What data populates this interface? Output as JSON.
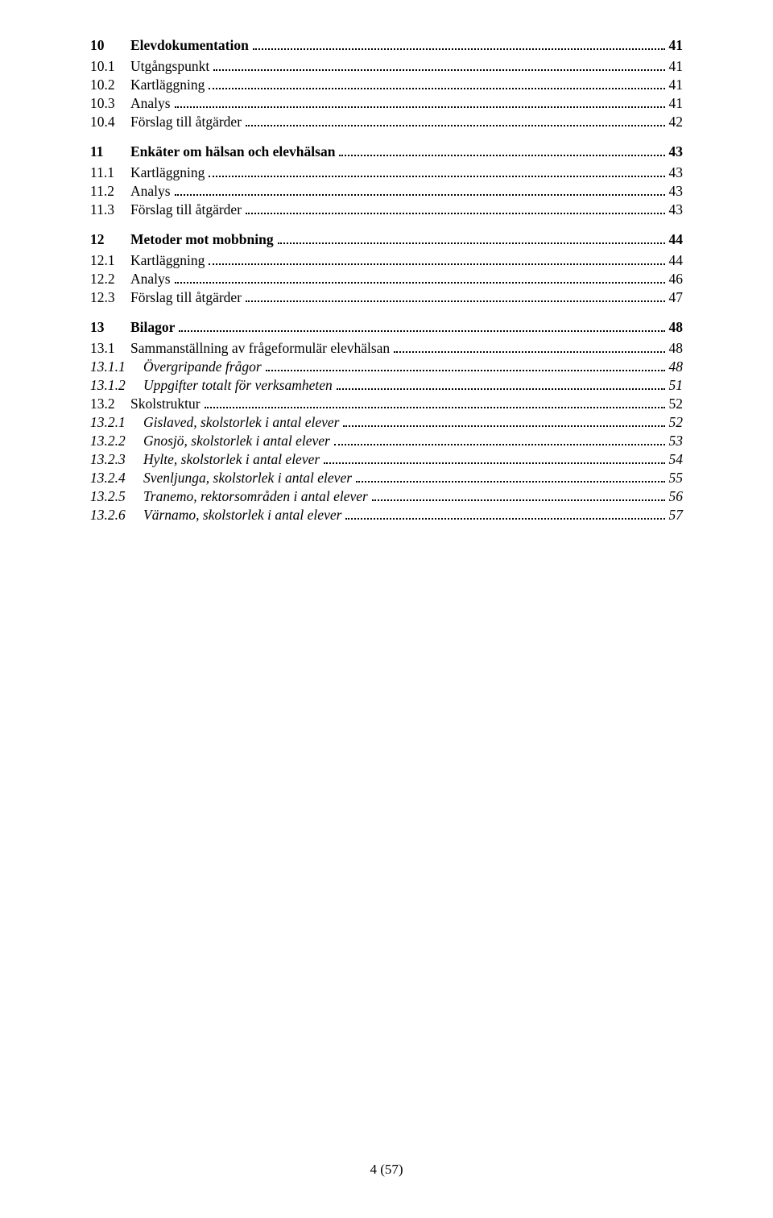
{
  "footer": "4 (57)",
  "toc": [
    {
      "level": 1,
      "num": "10",
      "label": "Elevdokumentation",
      "page": "41"
    },
    {
      "level": 2,
      "num": "10.1",
      "label": "Utgångspunkt",
      "page": "41"
    },
    {
      "level": 2,
      "num": "10.2",
      "label": "Kartläggning",
      "page": "41"
    },
    {
      "level": 2,
      "num": "10.3",
      "label": "Analys",
      "page": "41"
    },
    {
      "level": 2,
      "num": "10.4",
      "label": "Förslag till åtgärder",
      "page": "42"
    },
    {
      "level": 1,
      "num": "11",
      "label": "Enkäter om hälsan och elevhälsan",
      "page": "43"
    },
    {
      "level": 2,
      "num": "11.1",
      "label": "Kartläggning",
      "page": "43"
    },
    {
      "level": 2,
      "num": "11.2",
      "label": "Analys",
      "page": "43"
    },
    {
      "level": 2,
      "num": "11.3",
      "label": "Förslag till åtgärder",
      "page": "43"
    },
    {
      "level": 1,
      "num": "12",
      "label": "Metoder mot mobbning",
      "page": "44"
    },
    {
      "level": 2,
      "num": "12.1",
      "label": "Kartläggning",
      "page": "44"
    },
    {
      "level": 2,
      "num": "12.2",
      "label": "Analys",
      "page": "46"
    },
    {
      "level": 2,
      "num": "12.3",
      "label": "Förslag till åtgärder",
      "page": "47"
    },
    {
      "level": 1,
      "num": "13",
      "label": "Bilagor",
      "page": "48"
    },
    {
      "level": 2,
      "num": "13.1",
      "label": "Sammanställning av frågeformulär elevhälsan",
      "page": "48"
    },
    {
      "level": 3,
      "num": "13.1.1",
      "label": "Övergripande frågor",
      "page": "48"
    },
    {
      "level": 3,
      "num": "13.1.2",
      "label": "Uppgifter totalt för verksamheten",
      "page": "51"
    },
    {
      "level": 2,
      "num": "13.2",
      "label": "Skolstruktur",
      "page": "52"
    },
    {
      "level": 3,
      "num": "13.2.1",
      "label": "Gislaved, skolstorlek i antal elever",
      "page": "52"
    },
    {
      "level": 3,
      "num": "13.2.2",
      "label": "Gnosjö, skolstorlek i antal elever",
      "page": "53"
    },
    {
      "level": 3,
      "num": "13.2.3",
      "label": "Hylte, skolstorlek i antal elever",
      "page": "54"
    },
    {
      "level": 3,
      "num": "13.2.4",
      "label": "Svenljunga, skolstorlek i antal elever",
      "page": "55"
    },
    {
      "level": 3,
      "num": "13.2.5",
      "label": "Tranemo, rektorsområden i antal elever",
      "page": "56"
    },
    {
      "level": 3,
      "num": "13.2.6",
      "label": "Värnamo, skolstorlek i antal elever",
      "page": "57"
    }
  ]
}
